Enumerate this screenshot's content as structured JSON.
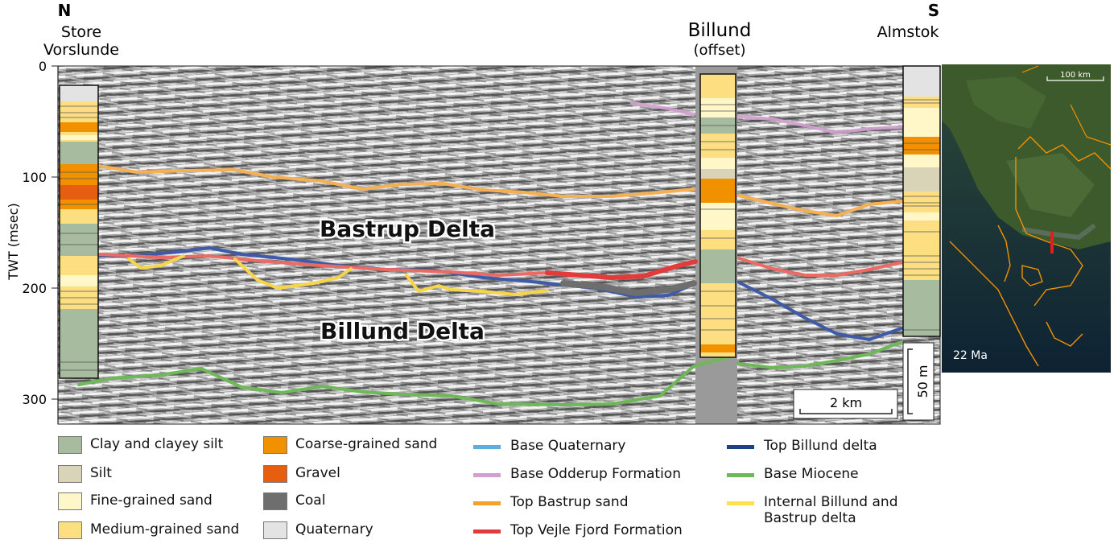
{
  "directions": {
    "north": "N",
    "south": "S"
  },
  "wells": [
    {
      "id": "store-vorslunde",
      "name_line1": "Store",
      "name_line2": "Vorslunde"
    },
    {
      "id": "billund",
      "name_line1": "Billund",
      "name_line2": "(offset)"
    },
    {
      "id": "almstok",
      "name_line1": "Almstok",
      "name_line2": ""
    }
  ],
  "axis": {
    "ylabel": "TWT (msec)",
    "ticks": [
      "0",
      "100",
      "200",
      "300"
    ],
    "ylim": [
      0,
      320
    ]
  },
  "annotations": {
    "upper_unit": "Bastrup Delta",
    "lower_unit": "Billund Delta"
  },
  "scale_bars": {
    "horizontal": "2 km",
    "vertical": "50 m"
  },
  "inset_map": {
    "scale": "100 km",
    "age": "22 Ma"
  },
  "colors": {
    "clay": "#a7bb9f",
    "silt": "#d9d4b8",
    "fine": "#fff7c7",
    "medium": "#fddf82",
    "coarse": "#f29100",
    "gravel": "#e65e10",
    "coal": "#6e6e6e",
    "quaternary": "#e3e3e3",
    "base_quaternary": "#5aafe0",
    "base_odderup": "#d39ed0",
    "top_bastrup": "#f5a02d",
    "top_vejle": "#e23b3b",
    "top_billund": "#1f3f8a",
    "base_miocene": "#6fb85a",
    "internal": "#ffe24a"
  },
  "legend": {
    "lithology": [
      {
        "key": "clay",
        "label": "Clay and clayey silt"
      },
      {
        "key": "silt",
        "label": "Silt"
      },
      {
        "key": "fine",
        "label": "Fine-grained sand"
      },
      {
        "key": "medium",
        "label": "Medium-grained sand"
      },
      {
        "key": "coarse",
        "label": "Coarse-grained sand"
      },
      {
        "key": "gravel",
        "label": "Gravel"
      },
      {
        "key": "coal",
        "label": "Coal"
      },
      {
        "key": "quaternary",
        "label": "Quaternary"
      }
    ],
    "horizons": [
      {
        "key": "base_quaternary",
        "label": "Base Quaternary"
      },
      {
        "key": "base_odderup",
        "label": "Base Odderup Formation"
      },
      {
        "key": "top_bastrup",
        "label": "Top Bastrup sand"
      },
      {
        "key": "top_vejle",
        "label": "Top Vejle Fjord Formation"
      },
      {
        "key": "top_billund",
        "label": "Top Billund delta"
      },
      {
        "key": "base_miocene",
        "label": "Base Miocene"
      },
      {
        "key": "internal",
        "label": "Internal Billund and Bastrup delta"
      }
    ]
  }
}
